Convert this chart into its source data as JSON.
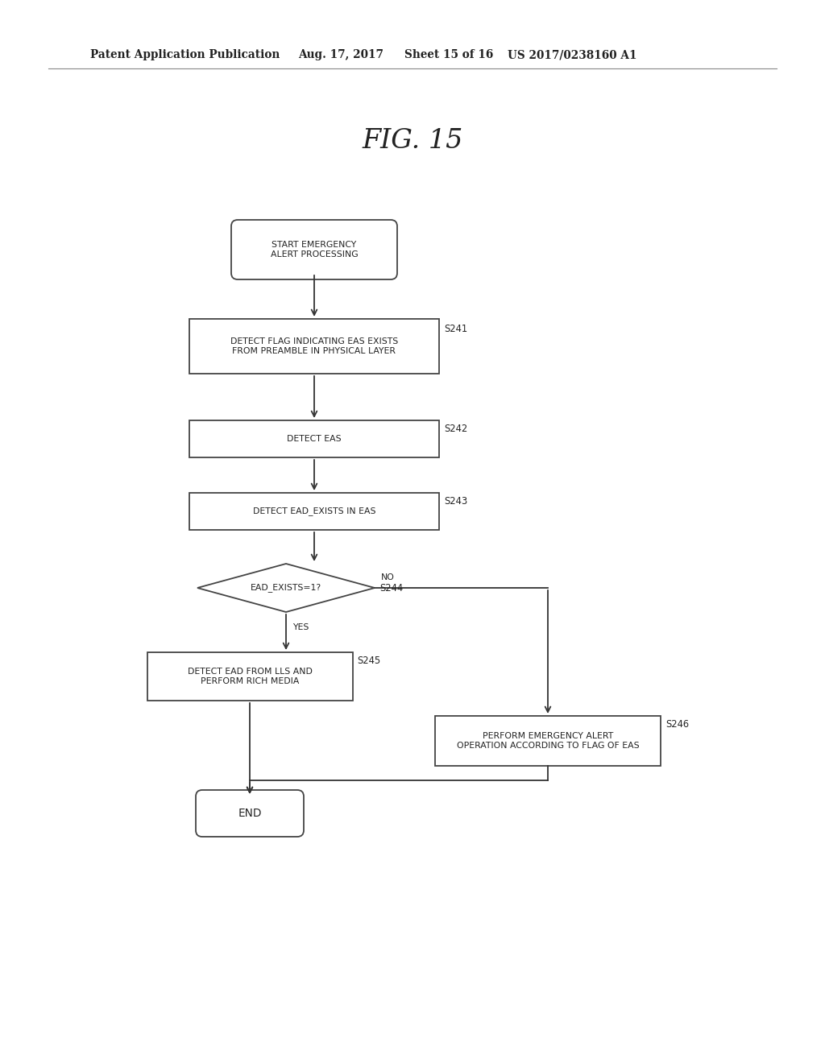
{
  "bg_color": "#ffffff",
  "header_text1": "Patent Application Publication",
  "header_text2": "Aug. 17, 2017",
  "header_text3": "Sheet 15 of 16",
  "header_text4": "US 2017/0238160 A1",
  "fig_title": "FIG. 15",
  "start_text": "START EMERGENCY\nALERT PROCESSING",
  "s241_text": "DETECT FLAG INDICATING EAS EXISTS\nFROM PREAMBLE IN PHYSICAL LAYER",
  "s241_label": "S241",
  "s242_text": "DETECT EAS",
  "s242_label": "S242",
  "s243_text": "DETECT EAD_EXISTS IN EAS",
  "s243_label": "S243",
  "s244_text": "EAD_EXISTS=1?",
  "s244_label": "S244",
  "s245_text": "DETECT EAD FROM LLS AND\nPERFORM RICH MEDIA",
  "s245_label": "S245",
  "s246_text": "PERFORM EMERGENCY ALERT\nOPERATION ACCORDING TO FLAG OF EAS",
  "s246_label": "S246",
  "end_text": "END",
  "yes_label": "YES",
  "no_label": "NO",
  "line_color": "#333333",
  "text_color": "#222222",
  "box_edge_color": "#444444",
  "font_size": 7.8,
  "header_font_size": 9.8,
  "title_font_size": 24,
  "lw": 1.3
}
